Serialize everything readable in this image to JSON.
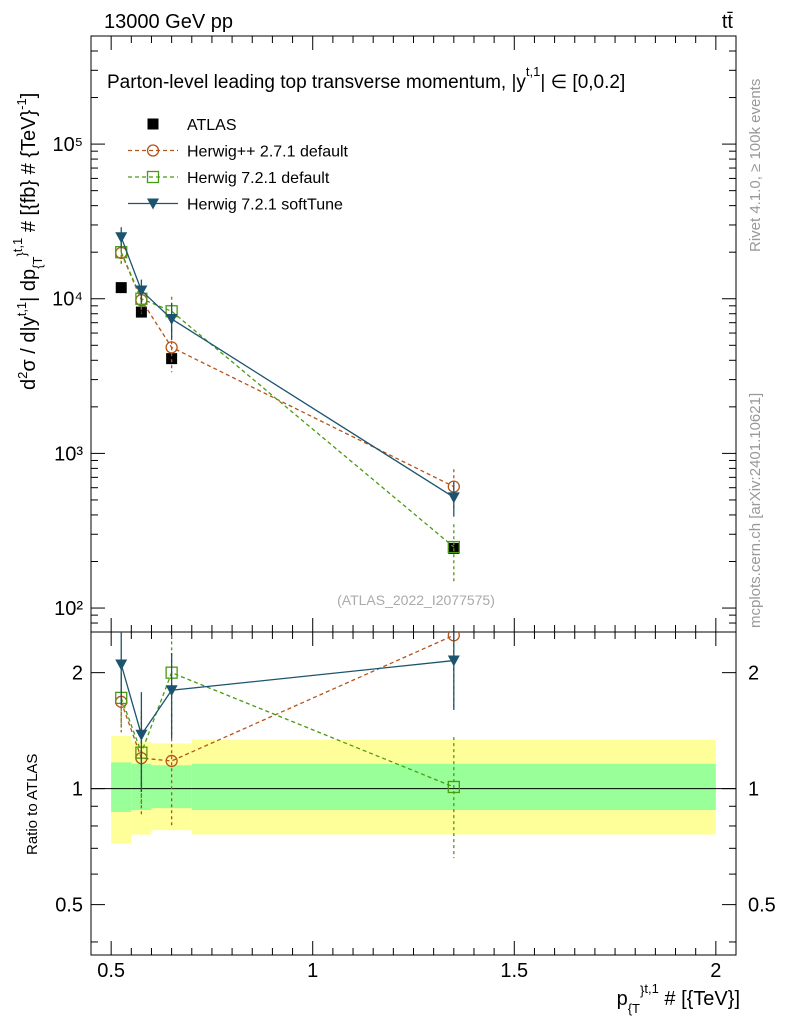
{
  "header": {
    "energy_label": "13000 GeV pp",
    "process_label": "tt̄"
  },
  "side_labels": {
    "rivet": "Rivet 4.1.0, ≥ 100k events",
    "mcplots": "mcplots.cern.ch [arXiv:2401.10621]"
  },
  "watermark": "(ATLAS_2022_I2077575)",
  "ratio_ylabel": "Ratio to ATLAS",
  "chart_data": {
    "type": "line",
    "title": "Parton-level leading top transverse momentum, |y^{t,1}| ∈ [0,0.2]",
    "title_parts": {
      "main": "Parton-level leading top transverse momentum, |y",
      "sup": "t,1",
      "tail": "| ∈ [0,0.2]"
    },
    "xlabel": "p_{T}^{t,1} # [{TeV}]",
    "ylabel": "d²σ / d|y^{t,1}| dp_{T}^{t,1} # [{fb} # {TeV}^{-1}]",
    "xlim": [
      0.45,
      2.05
    ],
    "ylim": [
      70,
      500000
    ],
    "yscale": "log",
    "x_ticks": [
      0.5,
      1,
      1.5,
      2
    ],
    "x_tick_labels": [
      "0.5",
      "1",
      "1.5",
      "2"
    ],
    "y_ticks": [
      100,
      1000,
      10000,
      100000
    ],
    "y_tick_labels": [
      "10²",
      "10³",
      "10⁴",
      "10⁵"
    ],
    "ratio": {
      "ylim": [
        0.37,
        2.55
      ],
      "ticks": [
        0.5,
        1,
        2
      ],
      "tick_labels": [
        "0.5",
        "1",
        "2"
      ],
      "band_edges": [
        0.5,
        0.55,
        0.6,
        0.7,
        2.0
      ],
      "band_inner": [
        [
          0.87,
          1.17
        ],
        [
          0.88,
          1.16
        ],
        [
          0.89,
          1.15
        ],
        [
          0.88,
          1.16
        ]
      ],
      "band_outer": [
        [
          0.72,
          1.37
        ],
        [
          0.76,
          1.32
        ],
        [
          0.78,
          1.31
        ],
        [
          0.76,
          1.34
        ]
      ]
    },
    "data": {
      "name": "ATLAS",
      "x": [
        0.525,
        0.575,
        0.65,
        1.35
      ],
      "y": [
        11800,
        8200,
        4100,
        243
      ]
    },
    "series": [
      {
        "name": "Herwig++ 2.7.1 default",
        "color": "#b5541a",
        "marker": "circle",
        "dashed": true,
        "x": [
          0.525,
          0.575,
          0.65,
          1.35
        ],
        "y": [
          19800,
          9800,
          4850,
          610
        ],
        "yerr": [
          3000,
          1800,
          1500,
          180
        ],
        "ratio": [
          1.68,
          1.2,
          1.18,
          2.5
        ],
        "ratio_err": [
          0.28,
          0.35,
          0.38,
          0.9
        ]
      },
      {
        "name": "Herwig 7.2.1 default",
        "color": "#4a9a12",
        "marker": "square",
        "dashed": true,
        "x": [
          0.525,
          0.575,
          0.65,
          1.35
        ],
        "y": [
          20000,
          10000,
          8300,
          248
        ],
        "yerr": [
          3000,
          1800,
          2000,
          100
        ],
        "ratio": [
          1.72,
          1.24,
          2.0,
          1.01
        ],
        "ratio_err": [
          0.28,
          0.35,
          0.5,
          0.35
        ]
      },
      {
        "name": "Herwig 7.2.1 softTune",
        "color": "#1c5470",
        "marker": "triangle-down",
        "dashed": false,
        "x": [
          0.525,
          0.575,
          0.65,
          1.35
        ],
        "y": [
          25000,
          11300,
          7400,
          520
        ],
        "yerr": [
          4000,
          2000,
          2000,
          130
        ],
        "ratio": [
          2.1,
          1.38,
          1.8,
          2.15
        ],
        "ratio_err": [
          0.45,
          0.4,
          0.45,
          0.55
        ]
      }
    ]
  }
}
